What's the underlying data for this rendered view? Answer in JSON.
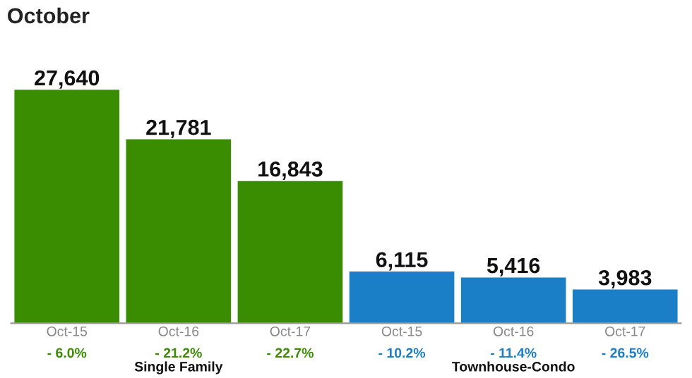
{
  "chart_data": {
    "type": "bar",
    "title": "October",
    "categories": [
      "Oct-15",
      "Oct-16",
      "Oct-17",
      "Oct-15",
      "Oct-16",
      "Oct-17"
    ],
    "series": [
      {
        "name": "Single Family",
        "color": "#3a8c00",
        "values": [
          27640,
          21781,
          16843,
          null,
          null,
          null
        ],
        "value_labels": [
          "27,640",
          "21,781",
          "16,843",
          null,
          null,
          null
        ]
      },
      {
        "name": "Townhouse-Condo",
        "color": "#1a7fc6",
        "values": [
          null,
          null,
          null,
          6115,
          5416,
          3983
        ],
        "value_labels": [
          null,
          null,
          null,
          "6,115",
          "5,416",
          "3,983"
        ]
      }
    ],
    "annotations": [
      "- 6.0%",
      "- 21.2%",
      "- 22.7%",
      "- 10.2%",
      "- 11.4%",
      "- 26.5%"
    ],
    "grid": false,
    "legend": false
  }
}
